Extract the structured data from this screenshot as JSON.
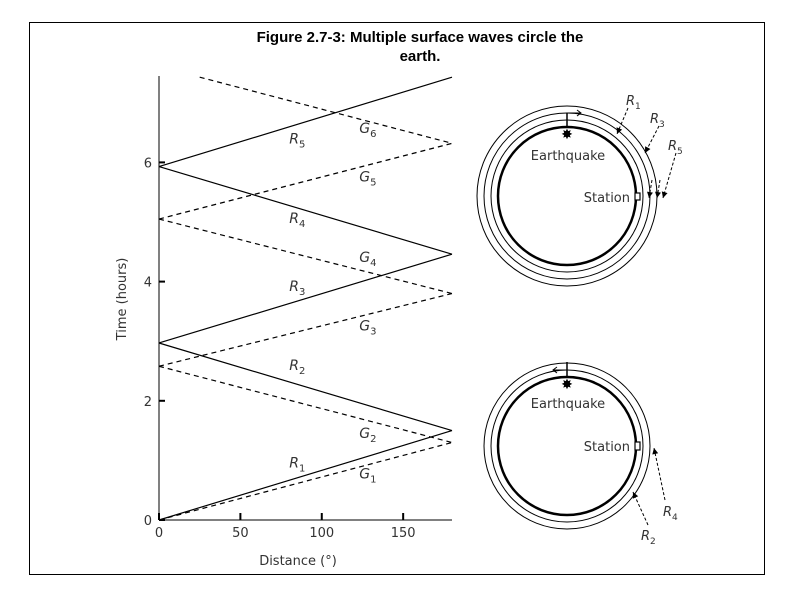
{
  "title_line1": "Figure 2.7-3:  Multiple surface waves circle the",
  "title_line2": "earth.",
  "chart_data": {
    "type": "line",
    "xlabel": "Distance (°)",
    "ylabel": "Time (hours)",
    "xlim": [
      0,
      180
    ],
    "ylim": [
      0,
      7.5
    ],
    "xticks": [
      0,
      50,
      100,
      150
    ],
    "yticks": [
      0,
      2,
      4,
      6
    ],
    "grid": false,
    "series": [
      {
        "name": "R1",
        "sub": "1",
        "style": "solid",
        "x": [
          0,
          180
        ],
        "y": [
          0,
          1.5
        ]
      },
      {
        "name": "R2",
        "sub": "2",
        "style": "solid",
        "x": [
          0,
          180
        ],
        "y": [
          2.97,
          1.5
        ]
      },
      {
        "name": "R3",
        "sub": "3",
        "style": "solid",
        "x": [
          0,
          180
        ],
        "y": [
          2.97,
          4.46
        ]
      },
      {
        "name": "R4",
        "sub": "4",
        "style": "solid",
        "x": [
          0,
          180
        ],
        "y": [
          5.93,
          4.46
        ]
      },
      {
        "name": "R5",
        "sub": "5",
        "style": "solid",
        "x": [
          0,
          180
        ],
        "y": [
          5.93,
          7.43
        ]
      },
      {
        "name": "G1",
        "sub": "1",
        "style": "dashed",
        "x": [
          0,
          180
        ],
        "y": [
          0,
          1.3
        ]
      },
      {
        "name": "G2",
        "sub": "2",
        "style": "dashed",
        "x": [
          0,
          180
        ],
        "y": [
          2.58,
          1.3
        ]
      },
      {
        "name": "G3",
        "sub": "3",
        "style": "dashed",
        "x": [
          0,
          180
        ],
        "y": [
          2.58,
          3.8
        ]
      },
      {
        "name": "G4",
        "sub": "4",
        "style": "dashed",
        "x": [
          0,
          180
        ],
        "y": [
          5.05,
          3.8
        ]
      },
      {
        "name": "G5",
        "sub": "5",
        "style": "dashed",
        "x": [
          0,
          180
        ],
        "y": [
          5.05,
          6.32
        ]
      },
      {
        "name": "G6",
        "sub": "6",
        "style": "dashed",
        "x": [
          25,
          180
        ],
        "y": [
          7.43,
          6.32
        ]
      }
    ],
    "labels": [
      {
        "base": "R",
        "sub": "1",
        "x": 80,
        "y": 0.88
      },
      {
        "base": "G",
        "sub": "1",
        "x": 123,
        "y": 0.7
      },
      {
        "base": "R",
        "sub": "2",
        "x": 80,
        "y": 2.52
      },
      {
        "base": "G",
        "sub": "2",
        "x": 123,
        "y": 1.38
      },
      {
        "base": "R",
        "sub": "3",
        "x": 80,
        "y": 3.84
      },
      {
        "base": "G",
        "sub": "3",
        "x": 123,
        "y": 3.18
      },
      {
        "base": "R",
        "sub": "4",
        "x": 80,
        "y": 4.98
      },
      {
        "base": "G",
        "sub": "4",
        "x": 123,
        "y": 4.33
      },
      {
        "base": "R",
        "sub": "5",
        "x": 80,
        "y": 6.32
      },
      {
        "base": "G",
        "sub": "5",
        "x": 123,
        "y": 5.68
      },
      {
        "base": "G",
        "sub": "6",
        "x": 123,
        "y": 6.49
      }
    ]
  },
  "diagrams": {
    "earthquake_label": "Earthquake",
    "station_label": "Station",
    "top_labels": [
      {
        "base": "R",
        "sub": "1"
      },
      {
        "base": "R",
        "sub": "3"
      },
      {
        "base": "R",
        "sub": "5"
      }
    ],
    "bottom_labels": [
      {
        "base": "R",
        "sub": "4"
      },
      {
        "base": "R",
        "sub": "2"
      }
    ]
  }
}
